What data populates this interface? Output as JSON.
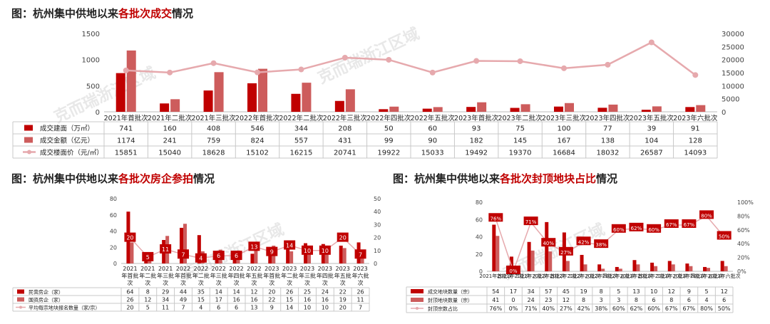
{
  "colors": {
    "dark_red": "#c00000",
    "mid_red": "#cd5c5c",
    "line_pink": "#e6a9ad",
    "table_grid": "#c8c8c8",
    "accent_text": "#c00000"
  },
  "watermark": "克而瑞浙江区域",
  "chart_data": [
    {
      "type": "bar",
      "title_prefix": "图：",
      "title_parts": [
        "杭州集中供地以来",
        "各批次成交",
        "情况"
      ],
      "categories": [
        "2021年首批次",
        "2021年二批次",
        "2021年三批次",
        "2022年首批次",
        "2022年二批次",
        "2022年三批次",
        "2022年四批次",
        "2022年五批次",
        "2023年首批次",
        "2023年二批次",
        "2023年三批次",
        "2023年四批次",
        "2023年五批次",
        "2023年六批次"
      ],
      "series": [
        {
          "name": "成交建面（万㎡）",
          "kind": "bar",
          "color": "#c00000",
          "axis": "left",
          "values": [
            741,
            160,
            408,
            546,
            344,
            208,
            50,
            60,
            93,
            75,
            100,
            77,
            39,
            91
          ]
        },
        {
          "name": "成交金额（亿元）",
          "kind": "bar",
          "color": "#cd5c5c",
          "axis": "left",
          "values": [
            1174,
            241,
            759,
            824,
            557,
            431,
            99,
            90,
            182,
            145,
            167,
            138,
            104,
            128
          ]
        },
        {
          "name": "成交楼面价（元/㎡）",
          "kind": "line",
          "color": "#e6a9ad",
          "axis": "right",
          "values": [
            15851,
            15040,
            18628,
            15102,
            16215,
            20741,
            19922,
            15033,
            19492,
            19370,
            16684,
            18032,
            26587,
            14093
          ]
        }
      ],
      "left_ticks": [
        "0",
        "500",
        "1000",
        "1500"
      ],
      "ylim_left": [
        0,
        1500
      ],
      "right_ticks": [
        "0",
        "5000",
        "10000",
        "15000",
        "20000",
        "25000",
        "30000"
      ],
      "ylim_right": [
        0,
        30000
      ]
    },
    {
      "type": "bar",
      "title_prefix": "图：",
      "title_parts": [
        "杭州集中供地以来",
        "各批次房企参拍",
        "情况"
      ],
      "categories": [
        "2021年首批次",
        "2021年二批次",
        "2021年三批次",
        "2022年首批次",
        "2022年二批次",
        "2022年三批次",
        "2022年四批次",
        "2022年五批次",
        "2023年首批次",
        "2023年二批次",
        "2023年三批次",
        "2023年四批次",
        "2023年五批次",
        "2023年六批次"
      ],
      "category_labels": [
        [
          "2021",
          "年首批",
          "次"
        ],
        [
          "2021",
          "年二批",
          "次"
        ],
        [
          "2021",
          "年三批",
          "次"
        ],
        [
          "2022",
          "年首批",
          "次"
        ],
        [
          "2022",
          "年二批",
          "次"
        ],
        [
          "2022",
          "年三批",
          "次"
        ],
        [
          "2022",
          "年四批",
          "次"
        ],
        [
          "2022",
          "年五批",
          "次"
        ],
        [
          "2023",
          "年首批",
          "次"
        ],
        [
          "2023",
          "年二批",
          "次"
        ],
        [
          "2023",
          "年三批",
          "次"
        ],
        [
          "2023",
          "年四批",
          "次"
        ],
        [
          "2023",
          "年五批",
          "次"
        ],
        [
          "2023",
          "年六批",
          "次"
        ]
      ],
      "series": [
        {
          "name": "民营房企（家）",
          "kind": "bar",
          "color": "#c00000",
          "axis": "left",
          "values": [
            64,
            8,
            29,
            44,
            35,
            14,
            14,
            12,
            20,
            26,
            25,
            24,
            22,
            26
          ]
        },
        {
          "name": "国资房企（家）",
          "kind": "bar",
          "color": "#cd5c5c",
          "axis": "left",
          "values": [
            26,
            12,
            34,
            49,
            15,
            17,
            16,
            16,
            22,
            15,
            16,
            16,
            19,
            11
          ]
        },
        {
          "name": "平均每宗地块报名数量（家/宗）",
          "kind": "line",
          "color": "#e6a9ad",
          "axis": "right",
          "values": [
            20,
            5,
            11,
            7,
            4,
            6,
            6,
            13,
            9,
            14,
            10,
            10,
            20,
            7
          ]
        }
      ],
      "bubbles": [
        "20",
        "5",
        "11",
        "7",
        "4",
        "6",
        "6",
        "13",
        "9",
        "14",
        "10",
        "10",
        "20",
        "7"
      ],
      "left_ticks": [
        "0",
        "20",
        "40",
        "60",
        "80"
      ],
      "ylim_left": [
        0,
        80
      ],
      "right_ticks": [
        "0",
        "10",
        "20",
        "30",
        "40",
        "50"
      ],
      "ylim_right": [
        0,
        50
      ]
    },
    {
      "type": "bar",
      "title_prefix": "图：",
      "title_parts": [
        "杭州集中供地以来",
        "各批次封顶地块占比",
        "情况"
      ],
      "categories": [
        "2021年首批次",
        "2021年二批次",
        "2021年三批次",
        "2022年首批次",
        "2022年二批次",
        "2022年三批次",
        "2022年四批次",
        "2022年五批次",
        "2023年首批次",
        "2023年二批次",
        "2023年三批次",
        "2023年四批次",
        "2023年五批次",
        "2023年六批次"
      ],
      "category_labels": [
        "2021年首批次",
        "2021年二批次",
        "2021年三批次",
        "2022年首批次",
        "2022年二批次",
        "2022年三批次",
        "2022年四批次",
        "2022年五批次",
        "2023年首批次",
        "2023年二批次",
        "2023年三批次",
        "2023年四批次",
        "2023年五批次",
        "2023年六批次"
      ],
      "series": [
        {
          "name": "成交地块数量（宗）",
          "kind": "bar",
          "color": "#c00000",
          "axis": "left",
          "values": [
            54,
            17,
            34,
            57,
            45,
            19,
            8,
            5,
            13,
            10,
            12,
            9,
            5,
            12
          ]
        },
        {
          "name": "封顶地块数量（宗）",
          "kind": "bar",
          "color": "#cd5c5c",
          "axis": "left",
          "values": [
            41,
            0,
            24,
            23,
            12,
            8,
            3,
            3,
            8,
            6,
            8,
            6,
            4,
            6
          ]
        },
        {
          "name": "封顶宗数占比",
          "kind": "line",
          "color": "#e6a9ad",
          "axis": "right",
          "values": [
            76,
            0,
            71,
            40,
            27,
            42,
            38,
            60,
            62,
            60,
            67,
            67,
            80,
            50
          ]
        }
      ],
      "table_values": [
        [
          "54",
          "17",
          "34",
          "57",
          "45",
          "19",
          "8",
          "5",
          "13",
          "10",
          "12",
          "9",
          "5",
          "12"
        ],
        [
          "41",
          "0",
          "24",
          "23",
          "12",
          "8",
          "3",
          "3",
          "8",
          "6",
          "8",
          "6",
          "4",
          "6"
        ],
        [
          "76%",
          "0%",
          "71%",
          "40%",
          "27%",
          "42%",
          "38%",
          "60%",
          "62%",
          "60%",
          "67%",
          "67%",
          "80%",
          "50%"
        ]
      ],
      "left_ticks": [
        "0",
        "20",
        "40",
        "60",
        "80"
      ],
      "ylim_left": [
        0,
        80
      ],
      "right_ticks": [
        "0%",
        "20%",
        "40%",
        "60%",
        "80%",
        "100%"
      ],
      "ylim_right": [
        0,
        100
      ]
    }
  ]
}
